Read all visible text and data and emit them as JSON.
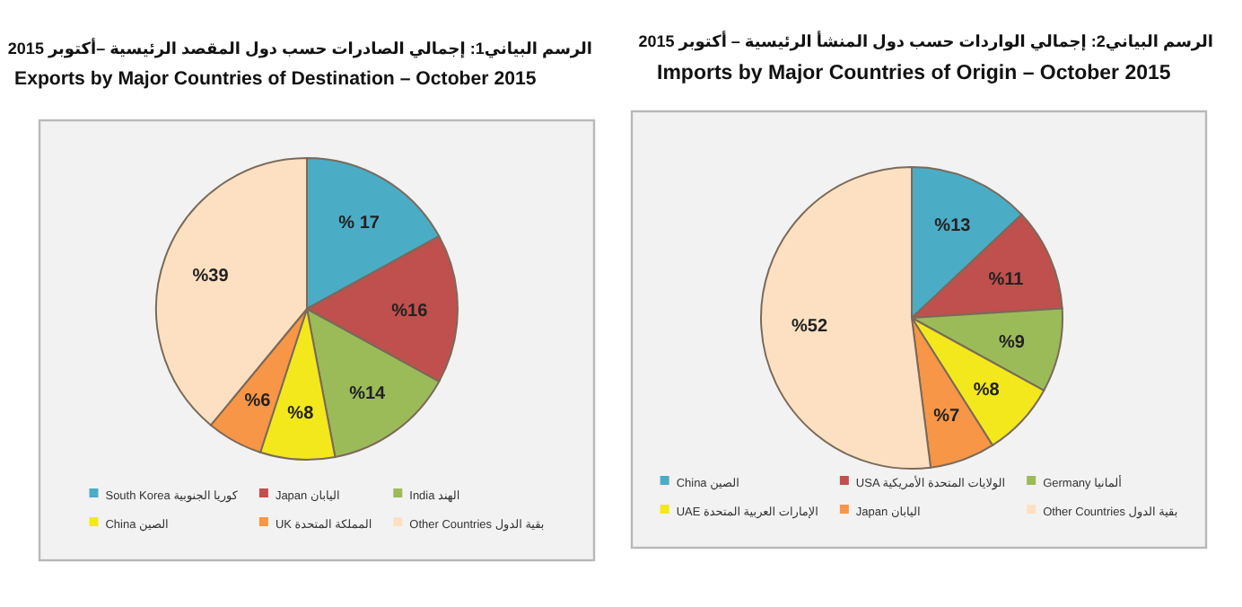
{
  "chart_data": [
    {
      "type": "pie",
      "title": "الرسم البياني1: إجمالي الصادرات حسب دول المقصد الرئيسية –أكتوبر 2015",
      "subtitle": "Exports by Major Countries of Destination – October 2015",
      "categories": [
        "South Korea كوريا الجنوبية",
        "Japan اليابان",
        "India الهند",
        "China الصين",
        "UK المملكة المتحدة",
        "Other Countries بقية الدول"
      ],
      "values": [
        17,
        16,
        14,
        8,
        6,
        39
      ],
      "value_labels": [
        "% 17",
        "%16",
        "%14",
        "%8",
        "%6",
        "%39"
      ],
      "colors": [
        "#4bacc6",
        "#c0504d",
        "#9bbb59",
        "#f2e81c",
        "#f79646",
        "#fde0c2"
      ],
      "legend": "bottom"
    },
    {
      "type": "pie",
      "title": "الرسم البياني2: إجمالي الواردات حسب دول المنشأ الرئيسية – أكتوبر 2015",
      "subtitle": "Imports by Major Countries of Origin – October 2015",
      "categories": [
        "China الصين",
        "USA الولايات المتحدة الأمريكية",
        "Germany ألمانيا",
        "UAE الإمارات العربية المتحدة",
        "Japan اليابان",
        "Other Countries بقية الدول"
      ],
      "values": [
        13,
        11,
        9,
        8,
        7,
        52
      ],
      "value_labels": [
        "%13",
        "%11",
        "%9",
        "%8",
        "%7",
        "%52"
      ],
      "colors": [
        "#4bacc6",
        "#c0504d",
        "#9bbb59",
        "#f2e81c",
        "#f79646",
        "#fde0c2"
      ],
      "legend": "bottom"
    }
  ]
}
